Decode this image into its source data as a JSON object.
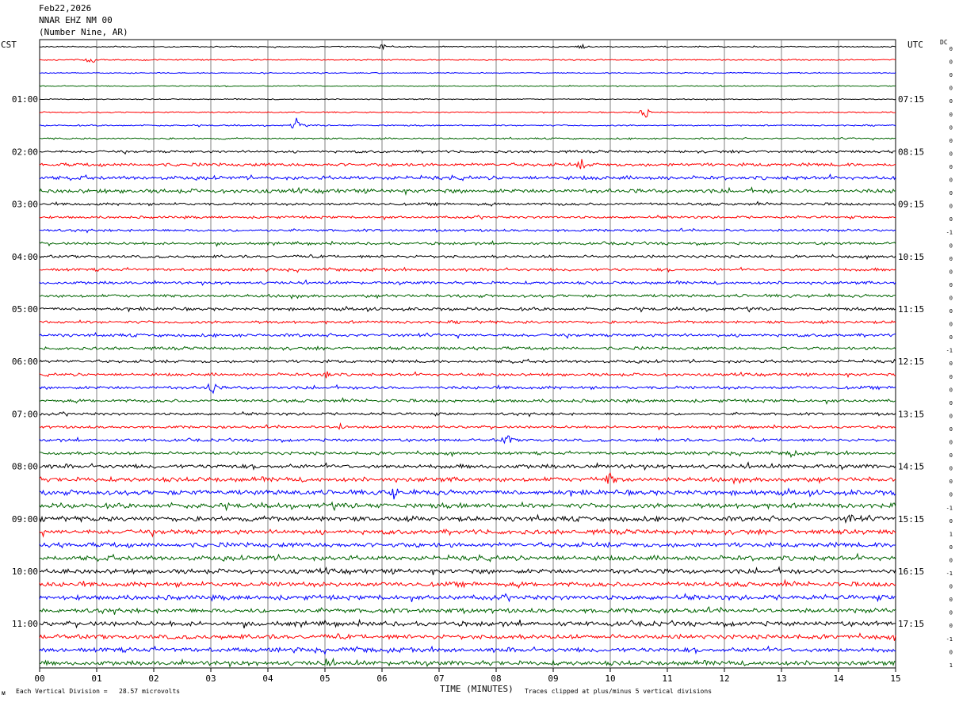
{
  "header": {
    "date": "Feb22,2026",
    "station": "NNAR EHZ NM 00",
    "location": "(Number Nine, AR)"
  },
  "left_tz": "CST",
  "right_tz": "UTC",
  "dc_label": "DC",
  "footer": {
    "scale_note": "Each Vertical Division =   28.57 microvolts",
    "clip_note": "Traces clipped at plus/minus 5 vertical divisions",
    "corner_mark": "ᴍ"
  },
  "colors": {
    "trace_cycle": [
      "#000000",
      "#ff0000",
      "#0000ff",
      "#006400"
    ],
    "grid": "#808080"
  },
  "chart_data": {
    "type": "line",
    "title": "NNAR EHZ NM 00",
    "xlabel": "TIME (MINUTES)",
    "xlim": [
      0,
      15
    ],
    "x_ticks": [
      "00",
      "01",
      "02",
      "03",
      "04",
      "05",
      "06",
      "07",
      "08",
      "09",
      "10",
      "11",
      "12",
      "13",
      "14",
      "15"
    ],
    "trace_count": 48,
    "minutes_per_trace": 15,
    "left_hour_labels": [
      "01:00",
      "02:00",
      "03:00",
      "04:00",
      "05:00",
      "06:00",
      "07:00",
      "08:00",
      "09:00",
      "10:00",
      "11:00"
    ],
    "right_hour_labels": [
      "07:15",
      "08:15",
      "09:15",
      "10:15",
      "11:15",
      "12:15",
      "13:15",
      "14:15",
      "15:15",
      "16:15",
      "17:15"
    ],
    "dc_offsets": [
      "0",
      "0",
      "0",
      "0",
      "0",
      "0",
      "0",
      "0",
      "0",
      "0",
      "0",
      "0",
      "0",
      "0",
      "-1",
      "0",
      "0",
      "0",
      "0",
      "0",
      "0",
      "0",
      "0",
      "-1",
      "0",
      "0",
      "0",
      "0",
      "0",
      "0",
      "0",
      "0",
      "0",
      "0",
      "0",
      "-1",
      "0",
      "1",
      "0",
      "0",
      "-1",
      "0",
      "0",
      "0",
      "0",
      "-1",
      "0",
      "1"
    ],
    "amplitude": [
      0.6,
      0.6,
      0.5,
      0.5,
      0.5,
      0.6,
      0.7,
      0.8,
      1.2,
      1.6,
      1.8,
      2.0,
      1.3,
      1.2,
      1.2,
      1.3,
      1.3,
      1.4,
      1.4,
      1.5,
      1.5,
      1.4,
      1.5,
      1.5,
      1.4,
      1.4,
      1.5,
      1.5,
      1.3,
      1.3,
      1.4,
      1.5,
      2.0,
      2.2,
      2.4,
      2.4,
      2.4,
      2.3,
      2.3,
      2.3,
      2.3,
      2.3,
      2.3,
      2.2,
      2.3,
      2.2,
      2.2,
      2.2
    ],
    "events": [
      {
        "trace": 0,
        "minute": 6.0,
        "size": 3
      },
      {
        "trace": 0,
        "minute": 9.5,
        "size": 3
      },
      {
        "trace": 1,
        "minute": 0.9,
        "size": 4
      },
      {
        "trace": 5,
        "minute": 10.6,
        "size": 8
      },
      {
        "trace": 6,
        "minute": 4.5,
        "size": 9
      },
      {
        "trace": 9,
        "minute": 9.5,
        "size": 5
      },
      {
        "trace": 25,
        "minute": 5.0,
        "size": 5
      },
      {
        "trace": 26,
        "minute": 3.0,
        "size": 9
      },
      {
        "trace": 29,
        "minute": 5.3,
        "size": 4
      },
      {
        "trace": 30,
        "minute": 8.2,
        "size": 6
      },
      {
        "trace": 31,
        "minute": 13.2,
        "size": 4
      },
      {
        "trace": 33,
        "minute": 10.0,
        "size": 7
      },
      {
        "trace": 34,
        "minute": 6.2,
        "size": 6
      },
      {
        "trace": 36,
        "minute": 14.2,
        "size": 5
      },
      {
        "trace": 47,
        "minute": 5.0,
        "size": 4
      }
    ],
    "grid": true
  }
}
